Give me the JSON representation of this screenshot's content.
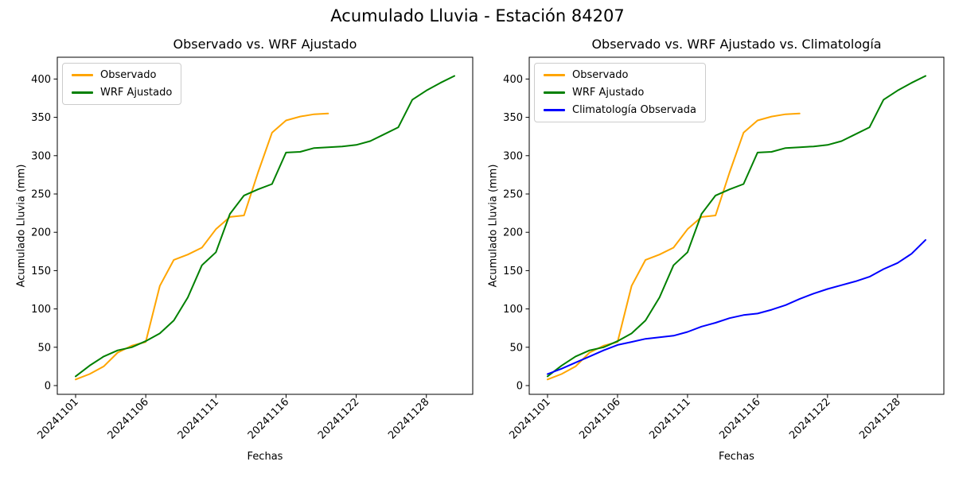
{
  "title": "Acumulado Lluvia - Estación 84207",
  "chart_data": [
    {
      "type": "line",
      "title": "Observado vs. WRF Ajustado",
      "xlabel": "Fechas",
      "ylabel": "Acumulado Lluvia (mm)",
      "x_tick_labels": [
        "20241101",
        "20241106",
        "20241111",
        "20241116",
        "20241122",
        "20241128"
      ],
      "x_tick_indices": [
        0,
        5,
        10,
        15,
        20,
        25
      ],
      "y_ticks": [
        0,
        50,
        100,
        150,
        200,
        250,
        300,
        350,
        400
      ],
      "ylim": [
        0,
        420
      ],
      "grid": false,
      "legend_position": "upper left",
      "series": [
        {
          "name": "Observado",
          "color": "#FFA500",
          "values": [
            8,
            15,
            25,
            43,
            52,
            57,
            130,
            164,
            171,
            180,
            204,
            220,
            222,
            278,
            330,
            346,
            351,
            354,
            355
          ]
        },
        {
          "name": "WRF Ajustado",
          "color": "#008000",
          "values": [
            12,
            26,
            38,
            46,
            50,
            58,
            68,
            85,
            115,
            157,
            174,
            224,
            248,
            256,
            263,
            304,
            305,
            310,
            311,
            312,
            314,
            319,
            328,
            337,
            373,
            385,
            395,
            404
          ]
        }
      ]
    },
    {
      "type": "line",
      "title": "Observado vs. WRF Ajustado vs. Climatología",
      "xlabel": "Fechas",
      "ylabel": "Acumulado Lluvia (mm)",
      "x_tick_labels": [
        "20241101",
        "20241106",
        "20241111",
        "20241116",
        "20241122",
        "20241128"
      ],
      "x_tick_indices": [
        0,
        5,
        10,
        15,
        20,
        25
      ],
      "y_ticks": [
        0,
        50,
        100,
        150,
        200,
        250,
        300,
        350,
        400
      ],
      "ylim": [
        0,
        420
      ],
      "grid": false,
      "legend_position": "upper left",
      "series": [
        {
          "name": "Observado",
          "color": "#FFA500",
          "values": [
            8,
            15,
            25,
            43,
            52,
            57,
            130,
            164,
            171,
            180,
            204,
            220,
            222,
            278,
            330,
            346,
            351,
            354,
            355
          ]
        },
        {
          "name": "WRF Ajustado",
          "color": "#008000",
          "values": [
            12,
            26,
            38,
            46,
            50,
            58,
            68,
            85,
            115,
            157,
            174,
            224,
            248,
            256,
            263,
            304,
            305,
            310,
            311,
            312,
            314,
            319,
            328,
            337,
            373,
            385,
            395,
            404
          ]
        },
        {
          "name": "Climatología Observada",
          "color": "#0000FF",
          "values": [
            15,
            22,
            30,
            38,
            46,
            53,
            57,
            61,
            63,
            65,
            70,
            77,
            82,
            88,
            92,
            94,
            99,
            105,
            113,
            120,
            126,
            131,
            136,
            142,
            152,
            160,
            172,
            190
          ]
        }
      ]
    }
  ]
}
